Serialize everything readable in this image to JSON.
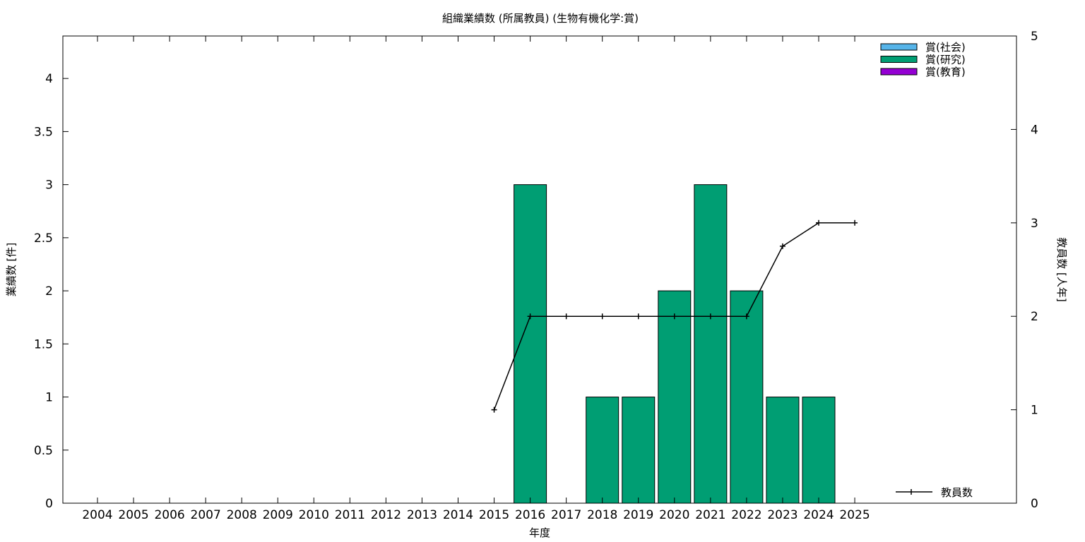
{
  "chart_data": {
    "type": "bar",
    "title": "組織業績数 (所属教員) (生物有機化学:賞)",
    "xlabel": "年度",
    "ylabel": "業績数 [件]",
    "y2label": "教員数 [人年]",
    "categories": [
      "2004",
      "2005",
      "2006",
      "2007",
      "2008",
      "2009",
      "2010",
      "2011",
      "2012",
      "2013",
      "2014",
      "2015",
      "2016",
      "2017",
      "2018",
      "2019",
      "2020",
      "2021",
      "2022",
      "2023",
      "2024",
      "2025"
    ],
    "ylim": [
      0,
      4.4
    ],
    "y2lim": [
      0,
      5
    ],
    "yticks": [
      "0",
      "0.5",
      "1",
      "1.5",
      "2",
      "2.5",
      "3",
      "3.5",
      "4"
    ],
    "y2ticks": [
      "0",
      "1",
      "2",
      "3",
      "4",
      "5"
    ],
    "series": [
      {
        "name": "賞(社会)",
        "color": "#56b4e9",
        "values": [
          0,
          0,
          0,
          0,
          0,
          0,
          0,
          0,
          0,
          0,
          0,
          0,
          0,
          0,
          0,
          0,
          0,
          0,
          0,
          0,
          0,
          0
        ]
      },
      {
        "name": "賞(研究)",
        "color": "#009e73",
        "values": [
          0,
          0,
          0,
          0,
          0,
          0,
          0,
          0,
          0,
          0,
          0,
          0,
          3,
          0,
          1,
          1,
          2,
          3,
          2,
          1,
          1,
          0
        ]
      },
      {
        "name": "賞(教育)",
        "color": "#9400d3",
        "values": [
          0,
          0,
          0,
          0,
          0,
          0,
          0,
          0,
          0,
          0,
          0,
          0,
          0,
          0,
          0,
          0,
          0,
          0,
          0,
          0,
          0,
          0
        ]
      }
    ],
    "line_series": {
      "name": "教員数",
      "color": "#000000",
      "axis": "y2",
      "points": [
        {
          "x": "2015",
          "y": 1
        },
        {
          "x": "2016",
          "y": 2
        },
        {
          "x": "2017",
          "y": 2
        },
        {
          "x": "2018",
          "y": 2
        },
        {
          "x": "2019",
          "y": 2
        },
        {
          "x": "2020",
          "y": 2
        },
        {
          "x": "2021",
          "y": 2
        },
        {
          "x": "2022",
          "y": 2
        },
        {
          "x": "2023",
          "y": 2.75
        },
        {
          "x": "2024",
          "y": 3
        },
        {
          "x": "2025",
          "y": 3
        }
      ]
    },
    "legend_position": "top-right",
    "grid": false
  }
}
